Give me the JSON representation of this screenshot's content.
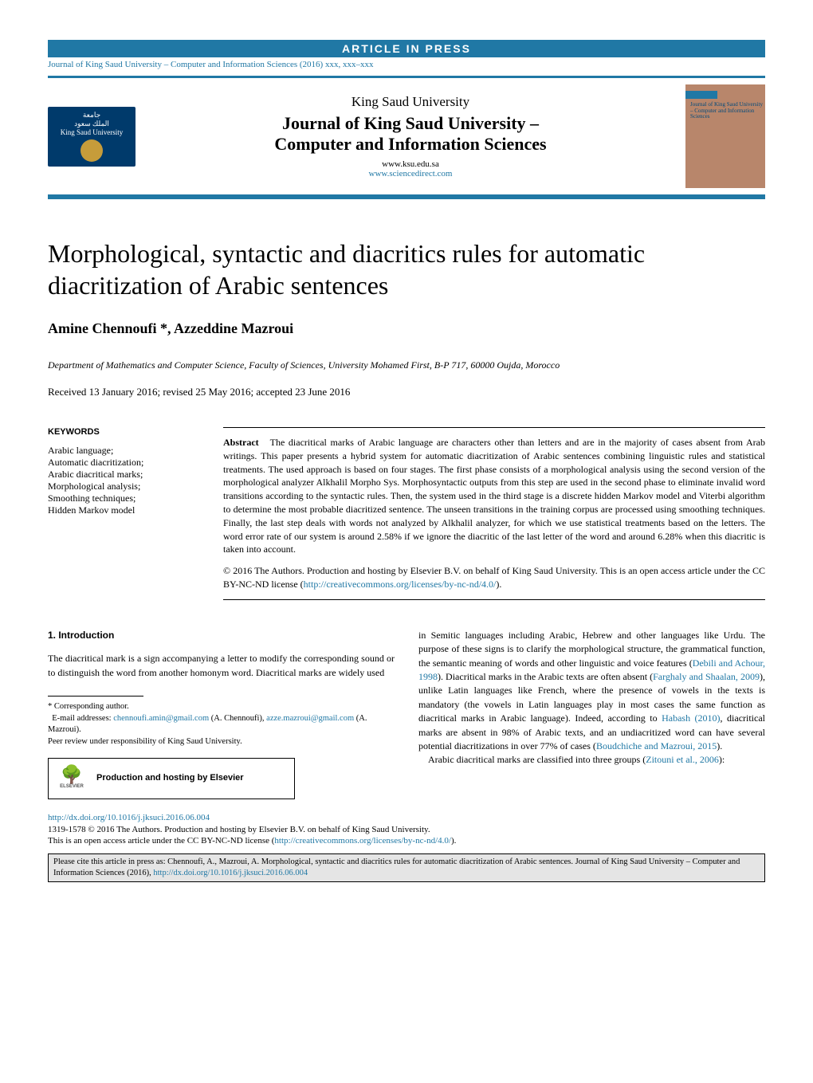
{
  "banner": "ARTICLE IN PRESS",
  "journal_ref": "Journal of King Saud University – Computer and Information Sciences (2016) xxx, xxx–xxx",
  "header": {
    "logo_line1": "جامعة",
    "logo_line2": "الملك سعود",
    "logo_line3": "King Saud University",
    "university": "King Saud University",
    "journal_line1": "Journal of King Saud University –",
    "journal_line2": "Computer and Information Sciences",
    "url1": "www.ksu.edu.sa",
    "url2": "www.sciencedirect.com",
    "cover_text": "Journal of King Saud University – Computer and Information Sciences"
  },
  "title": "Morphological, syntactic and diacritics rules for automatic diacritization of Arabic sentences",
  "authors": "Amine Chennoufi *, Azzeddine Mazroui",
  "affiliation": "Department of Mathematics and Computer Science, Faculty of Sciences, University Mohamed First, B-P 717, 60000 Oujda, Morocco",
  "dates": "Received 13 January 2016; revised 25 May 2016; accepted 23 June 2016",
  "keywords_heading": "KEYWORDS",
  "keywords": "Arabic language;\nAutomatic diacritization;\nArabic diacritical marks;\nMorphological analysis;\nSmoothing techniques;\nHidden Markov model",
  "abstract_label": "Abstract",
  "abstract_body": "The diacritical marks of Arabic language are characters other than letters and are in the majority of cases absent from Arab writings. This paper presents a hybrid system for automatic diacritization of Arabic sentences combining linguistic rules and statistical treatments. The used approach is based on four stages. The first phase consists of a morphological analysis using the second version of the morphological analyzer Alkhalil Morpho Sys. Morphosyntactic outputs from this step are used in the second phase to eliminate invalid word transitions according to the syntactic rules. Then, the system used in the third stage is a discrete hidden Markov model and Viterbi algorithm to determine the most probable diacritized sentence. The unseen transitions in the training corpus are processed using smoothing techniques. Finally, the last step deals with words not analyzed by Alkhalil analyzer, for which we use statistical treatments based on the letters. The word error rate of our system is around 2.58% if we ignore the diacritic of the last letter of the word and around 6.28% when this diacritic is taken into account.",
  "copyright": "© 2016 The Authors. Production and hosting by Elsevier B.V. on behalf of King Saud University. This is an open access article under the CC BY-NC-ND license (",
  "cc_link": "http://creativecommons.org/licenses/by-nc-nd/4.0/",
  "intro_heading": "1. Introduction",
  "intro_p1": "The diacritical mark is a sign accompanying a letter to modify the corresponding sound or to distinguish the word from another homonym word. Diacritical marks are widely used",
  "col2_p1a": "in Semitic languages including Arabic, Hebrew and other languages like Urdu. The purpose of these signs is to clarify the morphological structure, the grammatical function, the semantic meaning of words and other linguistic and voice features (",
  "ref1": "Debili and Achour, 1998",
  "col2_p1b": "). Diacritical marks in the Arabic texts are often absent (",
  "ref2": "Farghaly and Shaalan, 2009",
  "col2_p1c": "), unlike Latin languages like French, where the presence of vowels in the texts is mandatory (the vowels in Latin languages play in most cases the same function as diacritical marks in Arabic language). Indeed, according to ",
  "ref3": "Habash (2010)",
  "col2_p1d": ", diacritical marks are absent in 98% of Arabic texts, and an undiacritized word can have several potential diacritizations in over 77% of cases (",
  "ref4": "Boudchiche and Mazroui, 2015",
  "col2_p1e": ").",
  "col2_p2a": "Arabic diacritical marks are classified into three groups (",
  "ref5": "Zitouni et al., 2006",
  "col2_p2b": "):",
  "fn_corr": "* Corresponding author.",
  "fn_email_label": "E-mail addresses: ",
  "fn_email1": "chennoufi.amin@gmail.com",
  "fn_email1_name": " (A. Chennoufi), ",
  "fn_email2": "azze.mazroui@gmail.com",
  "fn_email2_name": " (A. Mazroui).",
  "fn_peer": "Peer review under responsibility of King Saud University.",
  "hosting": "Production and hosting by Elsevier",
  "elsevier": "ELSEVIER",
  "doi": "http://dx.doi.org/10.1016/j.jksuci.2016.06.004",
  "issn_line": "1319-1578 © 2016 The Authors. Production and hosting by Elsevier B.V. on behalf of King Saud University.",
  "cc_line": "This is an open access article under the CC BY-NC-ND license (",
  "cite_box": "Please cite this article in press as: Chennoufi, A., Mazroui, A. Morphological, syntactic and diacritics rules for automatic diacritization of Arabic sentences. Journal of King Saud University – Computer and Information Sciences (2016), ",
  "cite_doi": "http://dx.doi.org/10.1016/j.jksuci.2016.06.004",
  "colors": {
    "brand_blue": "#2078a5",
    "ksu_navy": "#003a6b",
    "ksu_gold": "#c69c3a",
    "cover_bg": "#b8866b",
    "cite_bg": "#e5e5e5"
  }
}
